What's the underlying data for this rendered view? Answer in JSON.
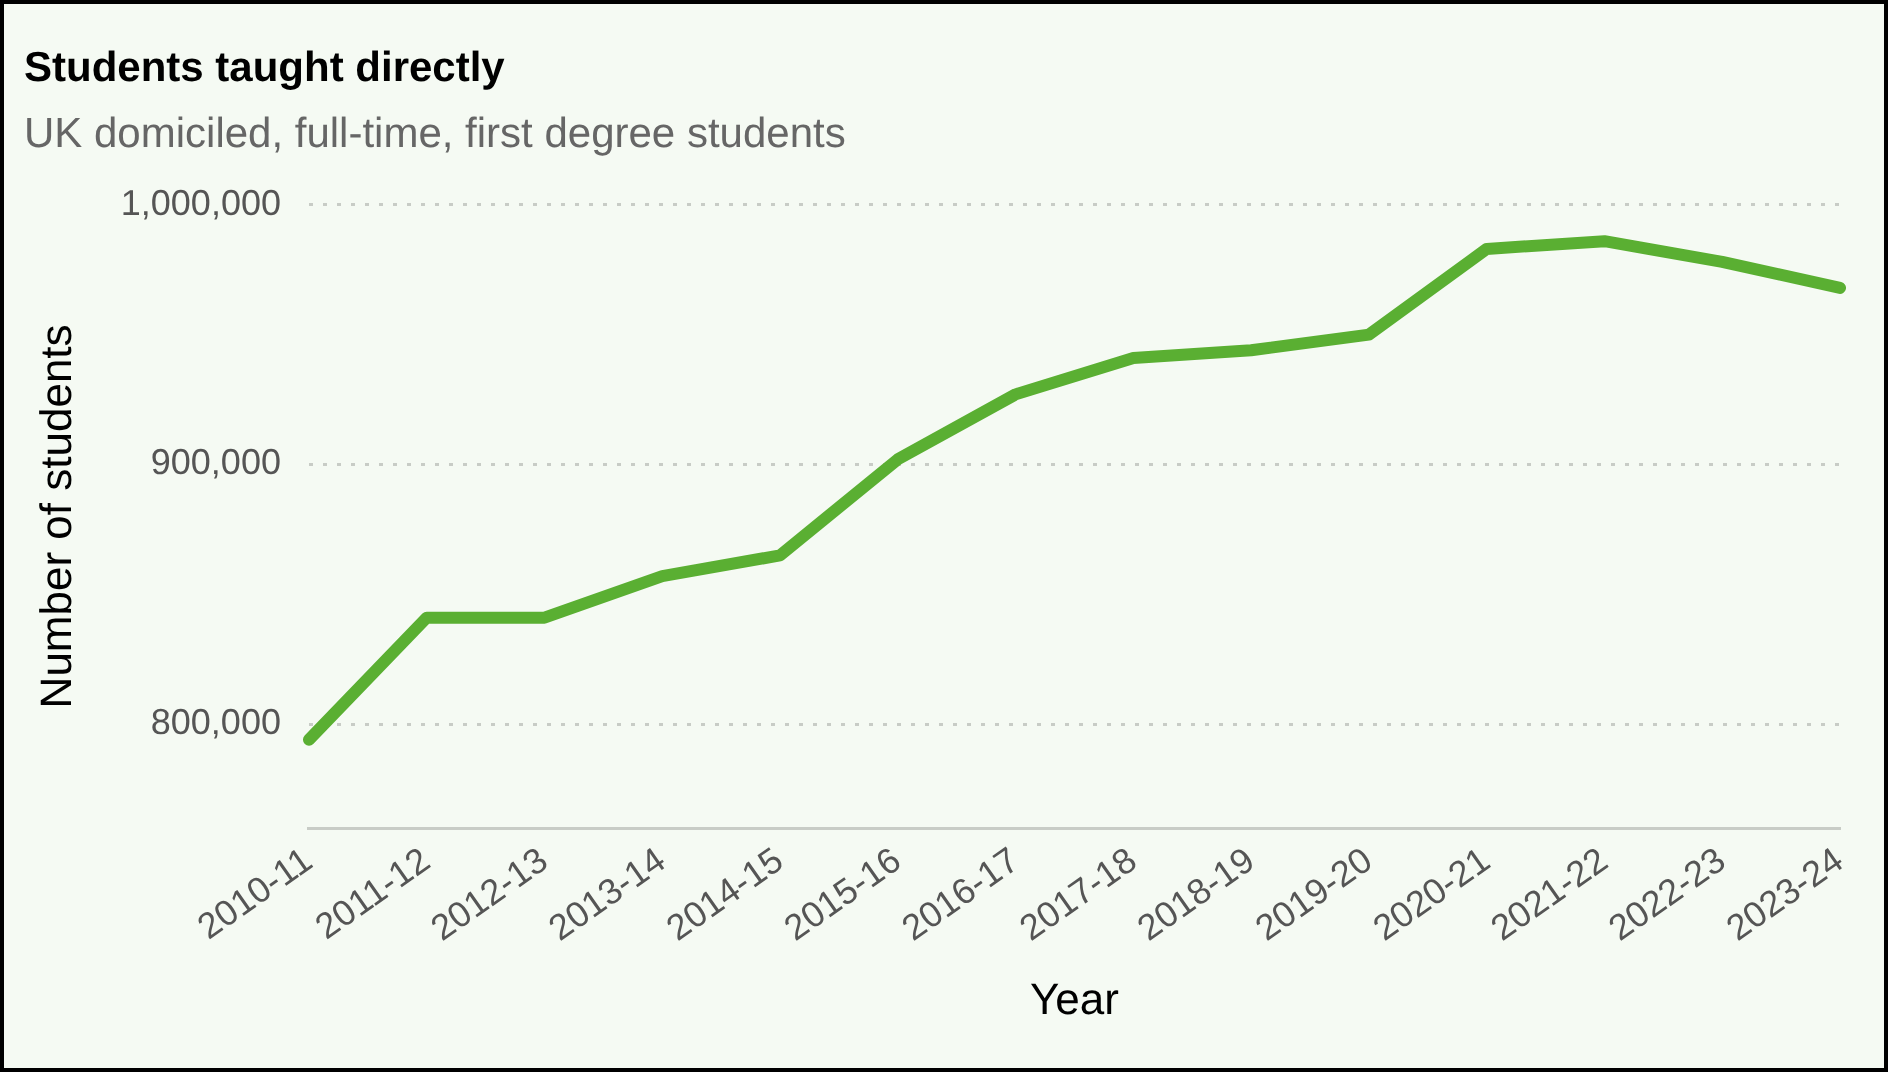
{
  "chart_data": {
    "type": "line",
    "title": "Students taught directly",
    "subtitle": "UK domiciled, full-time, first degree students",
    "xlabel": "Year",
    "ylabel": "Number of students",
    "categories": [
      "2010-11",
      "2011-12",
      "2012-13",
      "2013-14",
      "2014-15",
      "2015-16",
      "2016-17",
      "2017-18",
      "2018-19",
      "2019-20",
      "2020-21",
      "2021-22",
      "2022-23",
      "2023-24"
    ],
    "series": [
      {
        "color": "#5aaf32",
        "values": [
          794000,
          841000,
          841000,
          857000,
          865000,
          902000,
          927000,
          941000,
          944000,
          950000,
          983000,
          986000,
          978000,
          968000
        ]
      }
    ],
    "ylim": [
      760000,
      1000000
    ],
    "yticks": [
      {
        "value": 800000,
        "label": "800,000"
      },
      {
        "value": 900000,
        "label": "900,000"
      },
      {
        "value": 1000000,
        "label": "1,000,000"
      }
    ],
    "grid": "y",
    "legend": false,
    "marker": "none",
    "line_style": "solid"
  }
}
